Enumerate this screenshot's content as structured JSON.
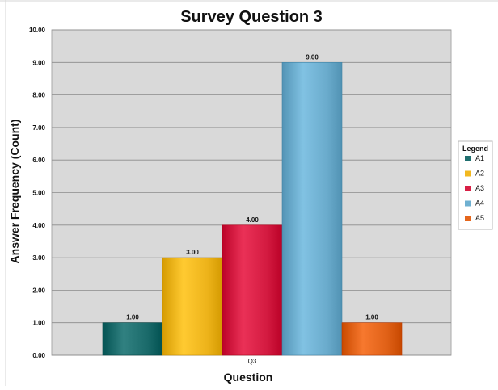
{
  "chart_data": {
    "type": "bar",
    "title": "Survey Question 3",
    "xlabel": "Question",
    "ylabel": "Answer Frequency (Count)",
    "categories": [
      "Q3"
    ],
    "series": [
      {
        "name": "A1",
        "values": [
          1
        ],
        "color": "#1f6f6f",
        "label": "1.00"
      },
      {
        "name": "A2",
        "values": [
          3
        ],
        "color": "#f2b81f",
        "label": "3.00"
      },
      {
        "name": "A3",
        "values": [
          4
        ],
        "color": "#d81f45",
        "label": "4.00"
      },
      {
        "name": "A4",
        "values": [
          9
        ],
        "color": "#6fb0d1",
        "label": "9.00"
      },
      {
        "name": "A5",
        "values": [
          1
        ],
        "color": "#e5661c",
        "label": "1.00"
      }
    ],
    "ylim": [
      0,
      10
    ],
    "yticks": [
      "0.00",
      "1.00",
      "2.00",
      "3.00",
      "4.00",
      "5.00",
      "6.00",
      "7.00",
      "8.00",
      "9.00",
      "10.00"
    ],
    "grid": true,
    "legend": {
      "title": "Legend",
      "position": "right"
    },
    "plot_background": "#d9d9d9"
  }
}
